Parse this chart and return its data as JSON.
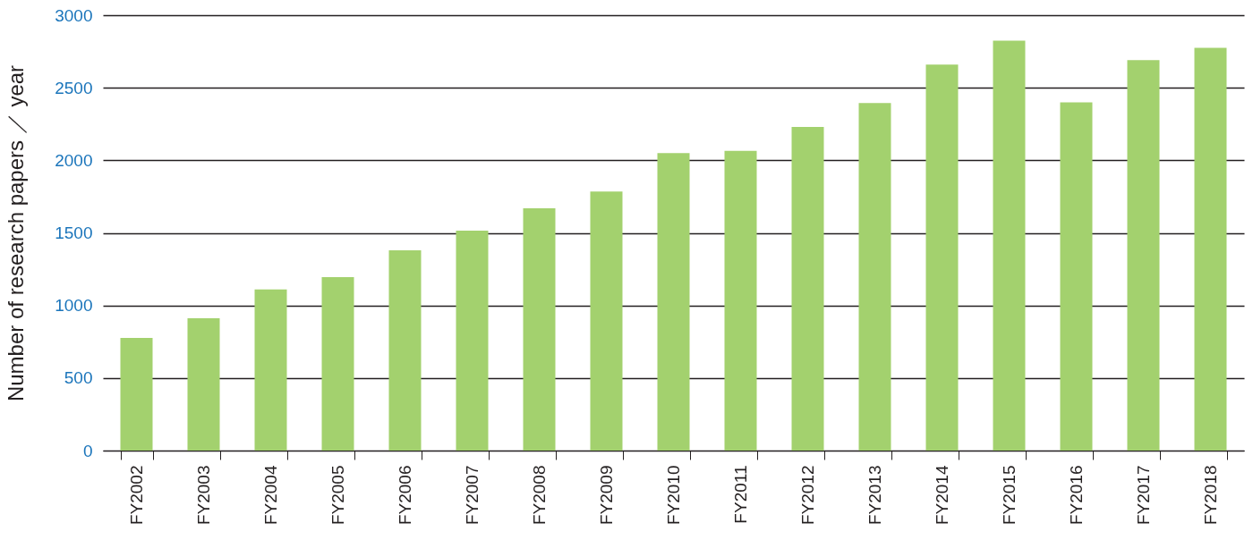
{
  "chart_data": {
    "type": "bar",
    "ylabel": "Number of research papers ／ year",
    "categories": [
      "FY2002",
      "FY2003",
      "FY2004",
      "FY2005",
      "FY2006",
      "FY2007",
      "FY2008",
      "FY2009",
      "FY2010",
      "FY2011",
      "FY2012",
      "FY2013",
      "FY2014",
      "FY2015",
      "FY2016",
      "FY2017",
      "FY2018"
    ],
    "values": [
      776,
      912,
      1110,
      1195,
      1380,
      1515,
      1670,
      1785,
      2050,
      2065,
      2230,
      2395,
      2660,
      2825,
      2400,
      2690,
      2775
    ],
    "color": "#a3d16e",
    "ylim": [
      0,
      3000
    ],
    "yticks": [
      0,
      500,
      1000,
      1500,
      2000,
      2500,
      3000
    ],
    "grid": "y"
  }
}
